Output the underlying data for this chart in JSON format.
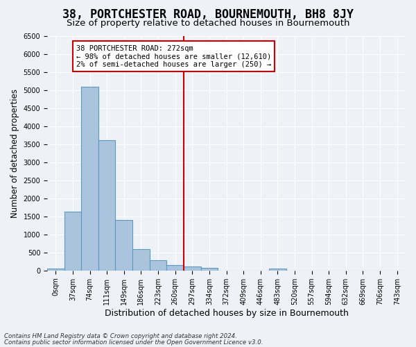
{
  "title": "38, PORTCHESTER ROAD, BOURNEMOUTH, BH8 8JY",
  "subtitle": "Size of property relative to detached houses in Bournemouth",
  "xlabel": "Distribution of detached houses by size in Bournemouth",
  "ylabel": "Number of detached properties",
  "footer_line1": "Contains HM Land Registry data © Crown copyright and database right 2024.",
  "footer_line2": "Contains public sector information licensed under the Open Government Licence v3.0.",
  "bin_labels": [
    "0sqm",
    "37sqm",
    "74sqm",
    "111sqm",
    "149sqm",
    "186sqm",
    "223sqm",
    "260sqm",
    "297sqm",
    "334sqm",
    "372sqm",
    "409sqm",
    "446sqm",
    "483sqm",
    "520sqm",
    "557sqm",
    "594sqm",
    "632sqm",
    "669sqm",
    "706sqm",
    "743sqm"
  ],
  "bar_values": [
    60,
    1620,
    5080,
    3600,
    1400,
    590,
    290,
    150,
    110,
    80,
    0,
    0,
    0,
    50,
    0,
    0,
    0,
    0,
    0,
    0,
    0
  ],
  "bar_color": "#aac4dd",
  "bar_edgecolor": "#5a9abf",
  "vline_x": 7.5,
  "vline_color": "#cc0000",
  "ylim": [
    0,
    6500
  ],
  "yticks": [
    0,
    500,
    1000,
    1500,
    2000,
    2500,
    3000,
    3500,
    4000,
    4500,
    5000,
    5500,
    6000,
    6500
  ],
  "annotation_title": "38 PORTCHESTER ROAD: 272sqm",
  "annotation_line1": "← 98% of detached houses are smaller (12,610)",
  "annotation_line2": "2% of semi-detached houses are larger (250) →",
  "background_color": "#eef2f7",
  "grid_color": "#ffffff",
  "title_fontsize": 12,
  "subtitle_fontsize": 9.5,
  "axis_fontsize": 8.5,
  "tick_fontsize": 7.0
}
